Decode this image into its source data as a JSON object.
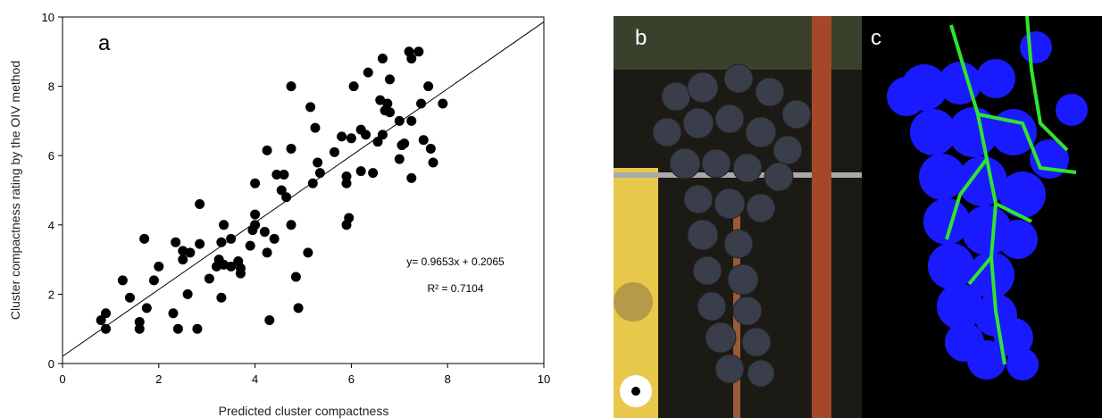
{
  "chart_data": {
    "type": "scatter",
    "panel_label": "a",
    "x_label": "Predicted cluster compactness",
    "y_label": "Cluster compactness rating by the OIV method",
    "x": [
      0.8,
      0.9,
      0.9,
      1.25,
      1.4,
      1.6,
      1.6,
      1.7,
      1.75,
      1.9,
      2.0,
      2.3,
      2.35,
      2.4,
      2.5,
      2.5,
      2.6,
      2.65,
      2.8,
      2.85,
      2.85,
      3.05,
      3.2,
      3.25,
      3.3,
      3.3,
      3.35,
      3.35,
      3.5,
      3.5,
      3.65,
      3.7,
      3.7,
      3.9,
      3.95,
      4.0,
      4.0,
      4.0,
      4.2,
      4.25,
      4.25,
      4.3,
      4.4,
      4.45,
      4.55,
      4.6,
      4.65,
      4.75,
      4.75,
      4.75,
      4.85,
      4.9,
      5.1,
      5.15,
      5.2,
      5.25,
      5.3,
      5.35,
      5.65,
      5.8,
      5.9,
      5.9,
      5.9,
      5.95,
      6.0,
      6.05,
      6.2,
      6.2,
      6.3,
      6.35,
      6.45,
      6.55,
      6.6,
      6.65,
      6.65,
      6.7,
      6.75,
      6.8,
      6.8,
      7.0,
      7.0,
      7.05,
      7.1,
      7.2,
      7.25,
      7.25,
      7.25,
      7.4,
      7.45,
      7.5,
      7.6,
      7.65,
      7.7,
      7.9
    ],
    "y": [
      1.25,
      1.45,
      1.0,
      2.4,
      1.9,
      1.0,
      1.2,
      3.6,
      1.6,
      2.4,
      2.8,
      1.45,
      3.5,
      1.0,
      3.25,
      3.0,
      2.0,
      3.2,
      1.0,
      4.6,
      3.45,
      2.45,
      2.8,
      3.0,
      1.9,
      3.5,
      4.0,
      2.85,
      2.8,
      3.6,
      2.95,
      2.6,
      2.75,
      3.4,
      3.85,
      5.2,
      4.3,
      4.0,
      3.8,
      6.15,
      3.2,
      1.25,
      3.6,
      5.45,
      5.0,
      5.45,
      4.8,
      8.0,
      6.2,
      4.0,
      2.5,
      1.6,
      3.2,
      7.4,
      5.2,
      6.8,
      5.8,
      5.5,
      6.1,
      6.55,
      5.4,
      5.2,
      4.0,
      4.2,
      6.5,
      8.0,
      5.55,
      6.75,
      6.6,
      8.4,
      5.5,
      6.4,
      7.6,
      8.8,
      6.6,
      7.3,
      7.5,
      8.2,
      7.25,
      7.0,
      5.9,
      6.3,
      6.35,
      9.0,
      8.8,
      7.0,
      5.35,
      9.0,
      7.5,
      6.45,
      8.0,
      6.2,
      5.8,
      7.5
    ],
    "color": "#000000",
    "xlim": [
      0,
      10
    ],
    "ylim": [
      0,
      10
    ],
    "xticks": [
      0,
      2,
      4,
      6,
      8,
      10
    ],
    "yticks": [
      0,
      2,
      4,
      6,
      8,
      10
    ],
    "trendline": {
      "slope": 0.9653,
      "intercept": 0.2065
    },
    "annotations": [
      "y= 0.9653x + 0.2065",
      "R² = 0.7104"
    ]
  },
  "panels": [
    {
      "label": "b"
    },
    {
      "label": "c"
    }
  ]
}
